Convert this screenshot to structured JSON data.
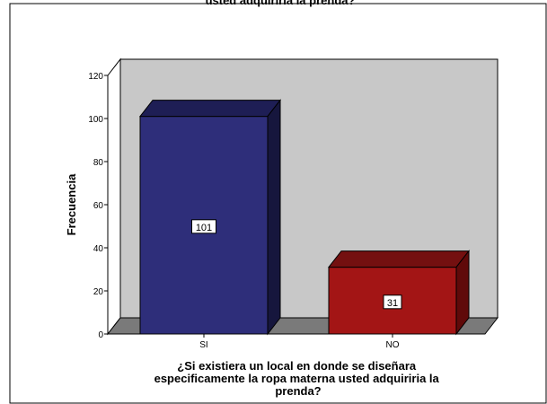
{
  "chart_data": {
    "type": "bar",
    "title": "usted adquiriria la prenda?",
    "xlabel_lines": [
      "¿Si existiera un local en donde se diseñara",
      "especificamente la ropa materna usted adquiriria la",
      "prenda?"
    ],
    "ylabel": "Frecuencia",
    "categories": [
      "SI",
      "NO"
    ],
    "values": [
      101,
      31
    ],
    "ylim": [
      0,
      120
    ],
    "yticks": [
      0,
      20,
      40,
      60,
      80,
      100,
      120
    ],
    "grid": false,
    "legend": "none",
    "bar_colors": [
      "#2e2e7a",
      "#a31515"
    ],
    "bar_side_colors": [
      "#16163d",
      "#600a0a"
    ],
    "bar_top_colors": [
      "#1e1e55",
      "#741010"
    ],
    "back_wall_color": "#c8c8c8",
    "floor_color": "#7a7a7a",
    "outer_bg": "#ffffff"
  }
}
